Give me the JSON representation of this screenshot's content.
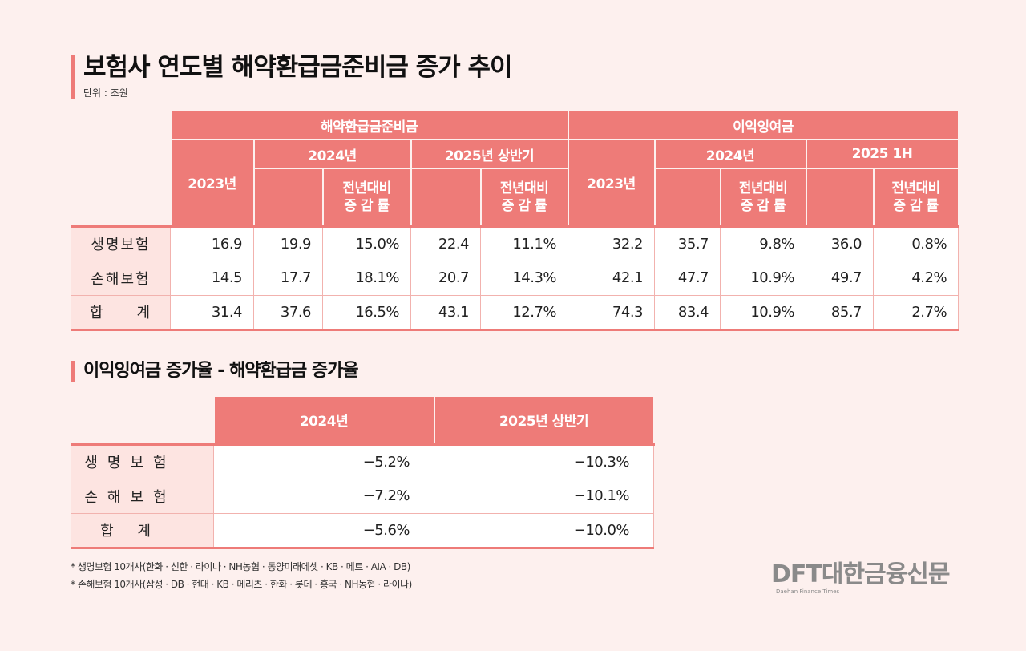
{
  "title": "보험사 연도별 해약환급금준비금 증가 추이",
  "unit": "단위 : 조원",
  "table1": {
    "group1": "해약환급금준비금",
    "group2": "이익잉여금",
    "y2023": "2023년",
    "y2024": "2024년",
    "y2025a": "2025년 상반기",
    "y2025b": "2025 1H",
    "yoy1": "전년대비",
    "yoy2": "증 감 률",
    "rows": [
      {
        "label": "생명보험",
        "v": [
          "16.9",
          "19.9",
          "15.0%",
          "22.4",
          "11.1%",
          "32.2",
          "35.7",
          "9.8%",
          "36.0",
          "0.8%"
        ]
      },
      {
        "label": "손해보험",
        "v": [
          "14.5",
          "17.7",
          "18.1%",
          "20.7",
          "14.3%",
          "42.1",
          "47.7",
          "10.9%",
          "49.7",
          "4.2%"
        ]
      },
      {
        "label": "합　　계",
        "v": [
          "31.4",
          "37.6",
          "16.5%",
          "43.1",
          "12.7%",
          "74.3",
          "83.4",
          "10.9%",
          "85.7",
          "2.7%"
        ]
      }
    ]
  },
  "subtitle": "이익잉여금 증가율 - 해약환급금 증가율",
  "table2": {
    "h1": "2024년",
    "h2": "2025년 상반기",
    "rows": [
      {
        "label": "생명보험",
        "v": [
          "−5.2%",
          "−10.3%"
        ]
      },
      {
        "label": "손해보험",
        "v": [
          "−7.2%",
          "−10.1%"
        ]
      },
      {
        "label": "합   계",
        "v": [
          "−5.6%",
          "−10.0%"
        ]
      }
    ]
  },
  "notes": [
    "* 생명보험 10개사(한화 · 신한 · 라이나 · NH농협 · 동양미래에셋 · KB · 메트 · AIA · DB)",
    "* 손해보험 10개사(삼성 · DB · 현대 · KB · 메리츠 · 한화 · 롯데 · 흥국 · NH농협 · 라이나)"
  ],
  "logo": {
    "text": "DFT대한금융신문",
    "tagline": "Daehan Finance Times"
  },
  "colors": {
    "accent": "#ee7b78",
    "background": "#fdf0ee",
    "label_bg": "#fde4e1"
  }
}
